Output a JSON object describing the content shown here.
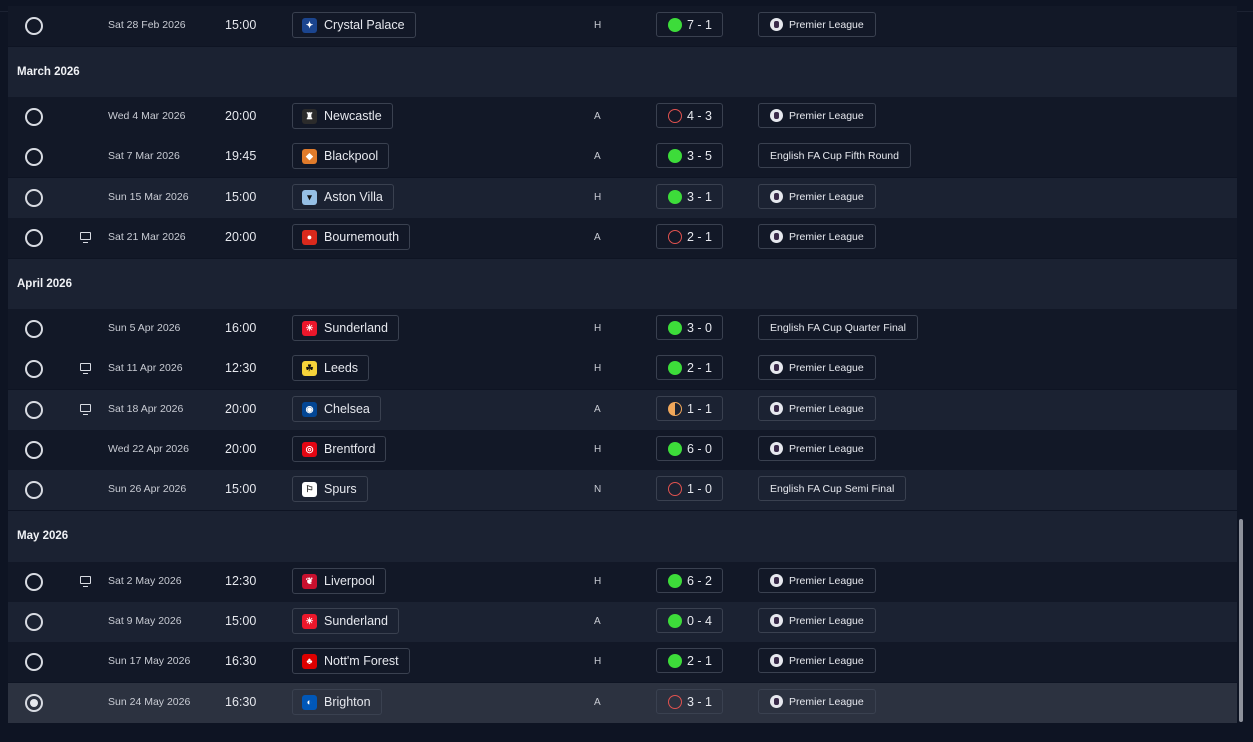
{
  "months": [
    {
      "label": "March 2026"
    },
    {
      "label": "April 2026"
    },
    {
      "label": "May 2026"
    }
  ],
  "fixtures": [
    {
      "date": "Sat 28 Feb 2026",
      "time": "15:00",
      "team": "Crystal Palace",
      "crest": "crystal-palace-crest",
      "crest_color": "#1b458f",
      "venue": "H",
      "result": "win",
      "score": "7 - 1",
      "competition": "Premier League",
      "competition_icon": "premier-league-lion-icon",
      "tv": false,
      "selected": false
    },
    {
      "date": "Wed 4 Mar 2026",
      "time": "20:00",
      "team": "Newcastle",
      "crest": "newcastle-crest",
      "crest_color": "#2b2b2b",
      "venue": "A",
      "result": "loss",
      "score": "4 - 3",
      "competition": "Premier League",
      "competition_icon": "premier-league-lion-icon",
      "tv": false,
      "selected": false
    },
    {
      "date": "Sat 7 Mar 2026",
      "time": "19:45",
      "team": "Blackpool",
      "crest": "blackpool-crest",
      "crest_color": "#e07b2b",
      "venue": "A",
      "result": "win",
      "score": "3 - 5",
      "competition": "English FA Cup Fifth Round",
      "competition_icon": "",
      "tv": false,
      "selected": false
    },
    {
      "date": "Sun 15 Mar 2026",
      "time": "15:00",
      "team": "Aston Villa",
      "crest": "aston-villa-crest",
      "crest_color": "#95bfe5",
      "venue": "H",
      "result": "win",
      "score": "3 - 1",
      "competition": "Premier League",
      "competition_icon": "premier-league-lion-icon",
      "tv": false,
      "selected": false
    },
    {
      "date": "Sat 21 Mar 2026",
      "time": "20:00",
      "team": "Bournemouth",
      "crest": "bournemouth-crest",
      "crest_color": "#da291c",
      "venue": "A",
      "result": "loss",
      "score": "2 - 1",
      "competition": "Premier League",
      "competition_icon": "premier-league-lion-icon",
      "tv": true,
      "selected": false
    },
    {
      "date": "Sun 5 Apr 2026",
      "time": "16:00",
      "team": "Sunderland",
      "crest": "sunderland-crest",
      "crest_color": "#eb172b",
      "venue": "H",
      "result": "win",
      "score": "3 - 0",
      "competition": "English FA Cup Quarter Final",
      "competition_icon": "",
      "tv": false,
      "selected": false
    },
    {
      "date": "Sat 11 Apr 2026",
      "time": "12:30",
      "team": "Leeds",
      "crest": "leeds-crest",
      "crest_color": "#f6d33a",
      "venue": "H",
      "result": "win",
      "score": "2 - 1",
      "competition": "Premier League",
      "competition_icon": "premier-league-lion-icon",
      "tv": true,
      "selected": false
    },
    {
      "date": "Sat 18 Apr 2026",
      "time": "20:00",
      "team": "Chelsea",
      "crest": "chelsea-crest",
      "crest_color": "#034694",
      "venue": "A",
      "result": "draw",
      "score": "1 - 1",
      "competition": "Premier League",
      "competition_icon": "premier-league-lion-icon",
      "tv": true,
      "selected": false
    },
    {
      "date": "Wed 22 Apr 2026",
      "time": "20:00",
      "team": "Brentford",
      "crest": "brentford-crest",
      "crest_color": "#e30613",
      "venue": "H",
      "result": "win",
      "score": "6 - 0",
      "competition": "Premier League",
      "competition_icon": "premier-league-lion-icon",
      "tv": false,
      "selected": false
    },
    {
      "date": "Sun 26 Apr 2026",
      "time": "15:00",
      "team": "Spurs",
      "crest": "spurs-crest",
      "crest_color": "#ffffff",
      "venue": "N",
      "result": "loss",
      "score": "1 - 0",
      "competition": "English FA Cup Semi Final",
      "competition_icon": "",
      "tv": false,
      "selected": false
    },
    {
      "date": "Sat 2 May 2026",
      "time": "12:30",
      "team": "Liverpool",
      "crest": "liverpool-crest",
      "crest_color": "#c8102e",
      "venue": "H",
      "result": "win",
      "score": "6 - 2",
      "competition": "Premier League",
      "competition_icon": "premier-league-lion-icon",
      "tv": true,
      "selected": false
    },
    {
      "date": "Sat 9 May 2026",
      "time": "15:00",
      "team": "Sunderland",
      "crest": "sunderland-crest",
      "crest_color": "#eb172b",
      "venue": "A",
      "result": "win",
      "score": "0 - 4",
      "competition": "Premier League",
      "competition_icon": "premier-league-lion-icon",
      "tv": false,
      "selected": false
    },
    {
      "date": "Sun 17 May 2026",
      "time": "16:30",
      "team": "Nott'm Forest",
      "crest": "nottm-forest-crest",
      "crest_color": "#dd0000",
      "venue": "H",
      "result": "win",
      "score": "2 - 1",
      "competition": "Premier League",
      "competition_icon": "premier-league-lion-icon",
      "tv": false,
      "selected": false
    },
    {
      "date": "Sun 24 May 2026",
      "time": "16:30",
      "team": "Brighton",
      "crest": "brighton-crest",
      "crest_color": "#0057b8",
      "venue": "A",
      "result": "loss",
      "score": "3 - 1",
      "competition": "Premier League",
      "competition_icon": "premier-league-lion-icon",
      "tv": false,
      "selected": true
    }
  ]
}
